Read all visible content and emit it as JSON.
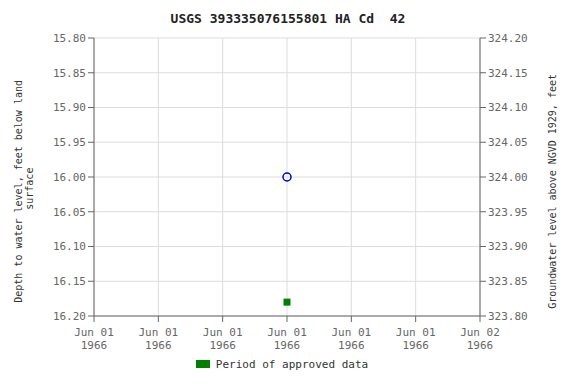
{
  "chart_data": {
    "type": "scatter",
    "title": "USGS 393335076155801 HA Cd  42",
    "y_label": "Depth to water level, feet below land\n surface",
    "y2_label": "Groundwater level above NGVD 1929, feet",
    "categories": [
      "Jun 01\n1966",
      "Jun 01\n1966",
      "Jun 01\n1966",
      "Jun 01\n1966",
      "Jun 01\n1966",
      "Jun 01\n1966",
      "Jun 02\n1966"
    ],
    "series": [
      {
        "color": "#0000bb",
        "marker": "open_circle",
        "values": [
          null,
          null,
          null,
          16.0,
          null,
          null,
          null
        ]
      },
      {
        "name": "Period of approved data",
        "color": "#008000",
        "marker": "square",
        "values": [
          null,
          null,
          null,
          16.18,
          null,
          null,
          null
        ]
      }
    ],
    "ylim": [
      16.2,
      15.8
    ],
    "yticks": [
      {
        "value": 15.8,
        "label": "15.80"
      },
      {
        "value": 15.85,
        "label": "15.85"
      },
      {
        "value": 15.9,
        "label": "15.90"
      },
      {
        "value": 15.95,
        "label": "15.95"
      },
      {
        "value": 16.0,
        "label": "16.00"
      },
      {
        "value": 16.05,
        "label": "16.05"
      },
      {
        "value": 16.1,
        "label": "16.10"
      },
      {
        "value": 16.15,
        "label": "16.15"
      },
      {
        "value": 16.2,
        "label": "16.20"
      }
    ],
    "y2lim": [
      323.8,
      324.2
    ],
    "y2ticks": [
      {
        "value": 323.8,
        "label": "323.80"
      },
      {
        "value": 323.85,
        "label": "323.85"
      },
      {
        "value": 323.9,
        "label": "323.90"
      },
      {
        "value": 323.95,
        "label": "323.95"
      },
      {
        "value": 324.0,
        "label": "324.00"
      },
      {
        "value": 324.05,
        "label": "324.05"
      },
      {
        "value": 324.1,
        "label": "324.10"
      },
      {
        "value": 324.15,
        "label": "324.15"
      },
      {
        "value": 324.2,
        "label": "324.20"
      }
    ],
    "grid": true,
    "legend": "bottom"
  }
}
